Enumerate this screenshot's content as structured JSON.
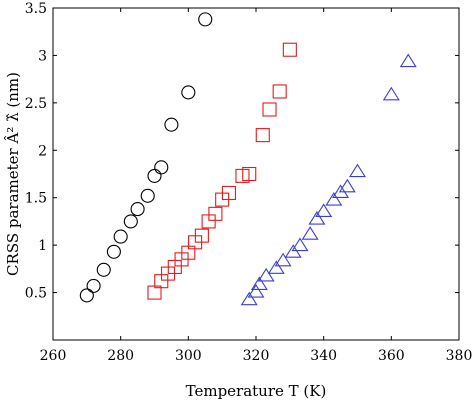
{
  "chart_data": {
    "type": "scatter",
    "title": "",
    "xlabel": "Temperature T (K)",
    "ylabel": "CRSS parameter Â² λ̂ (nm)",
    "xlim": [
      260,
      380
    ],
    "ylim": [
      0,
      3.5
    ],
    "xticks": [
      260,
      280,
      300,
      320,
      340,
      360,
      380
    ],
    "yticks": [
      0.5,
      1,
      1.5,
      2,
      2.5,
      3,
      3.5
    ],
    "grid": false,
    "legend": "none",
    "series": [
      {
        "marker": "circle",
        "color": "#000000",
        "points": [
          [
            270,
            0.47
          ],
          [
            272,
            0.57
          ],
          [
            275,
            0.74
          ],
          [
            278,
            0.93
          ],
          [
            280,
            1.09
          ],
          [
            283,
            1.25
          ],
          [
            285,
            1.38
          ],
          [
            288,
            1.52
          ],
          [
            290,
            1.73
          ],
          [
            292,
            1.82
          ],
          [
            295,
            2.27
          ],
          [
            300,
            2.61
          ],
          [
            305,
            3.38
          ]
        ]
      },
      {
        "marker": "square",
        "color": "#e41a1c",
        "points": [
          [
            290,
            0.5
          ],
          [
            292,
            0.62
          ],
          [
            294,
            0.7
          ],
          [
            296,
            0.77
          ],
          [
            298,
            0.85
          ],
          [
            300,
            0.92
          ],
          [
            302,
            1.03
          ],
          [
            304,
            1.1
          ],
          [
            306,
            1.25
          ],
          [
            308,
            1.33
          ],
          [
            310,
            1.48
          ],
          [
            312,
            1.55
          ],
          [
            316,
            1.73
          ],
          [
            318,
            1.75
          ],
          [
            322,
            2.16
          ],
          [
            324,
            2.43
          ],
          [
            327,
            2.62
          ],
          [
            330,
            3.06
          ]
        ]
      },
      {
        "marker": "triangle",
        "color": "#3b3fcf",
        "points": [
          [
            318,
            0.42
          ],
          [
            320,
            0.5
          ],
          [
            321,
            0.58
          ],
          [
            323,
            0.67
          ],
          [
            326,
            0.75
          ],
          [
            328,
            0.83
          ],
          [
            331,
            0.92
          ],
          [
            333,
            0.99
          ],
          [
            336,
            1.11
          ],
          [
            338,
            1.27
          ],
          [
            340,
            1.35
          ],
          [
            343,
            1.47
          ],
          [
            345,
            1.55
          ],
          [
            347,
            1.61
          ],
          [
            350,
            1.77
          ],
          [
            360,
            2.58
          ],
          [
            365,
            2.93
          ]
        ]
      }
    ]
  }
}
